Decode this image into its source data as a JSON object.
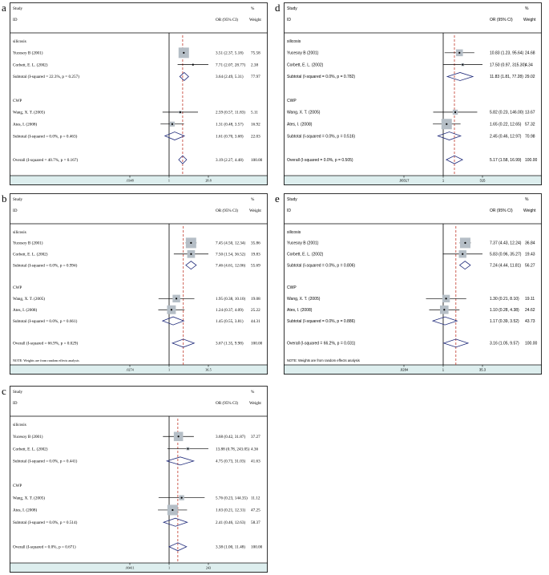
{
  "chart_data": [
    {
      "letter": "a",
      "type": "forest",
      "font": "serif",
      "columns": {
        "study": "Study",
        "id": "ID",
        "or": "OR (95% CI)",
        "pct": "%",
        "weight": "Weight"
      },
      "scale": {
        "min": 0.0348,
        "max": 28.8,
        "null": 1,
        "overall": 3.19
      },
      "ticks": [
        {
          "v": 0.0348,
          "label": ".0348"
        },
        {
          "v": 1,
          "label": "1"
        },
        {
          "v": 28.8,
          "label": "28.8"
        }
      ],
      "note": "",
      "rows": [
        {
          "kind": "group",
          "label": "silicosis"
        },
        {
          "kind": "study",
          "label": "Yucesoy B (2001)",
          "or": 3.51,
          "lo": 2.37,
          "hi": 5.18,
          "ci": "3.51 (2.37, 5.18)",
          "weight": "75.58",
          "w": 75.58
        },
        {
          "kind": "study",
          "label": "Corbett, E. L. (2002)",
          "or": 7.71,
          "lo": 2.07,
          "hi": 28.77,
          "ci": "7.71 (2.07, 28.77)",
          "weight": "2.38",
          "w": 2.38
        },
        {
          "kind": "subtotal",
          "label": "Subtotal  (I-squared = 22.3%, p = 0.257)",
          "or": 3.64,
          "lo": 2.49,
          "hi": 5.31,
          "ci": "3.64 (2.49, 5.31)",
          "weight": "77.97"
        },
        {
          "kind": "gap"
        },
        {
          "kind": "group",
          "label": "CWP"
        },
        {
          "kind": "study",
          "label": "Wang, X. T. (2005)",
          "or": 2.59,
          "lo": 0.57,
          "hi": 11.83,
          "ci": "2.59 (0.57, 11.83)",
          "weight": "5.11",
          "w": 5.11
        },
        {
          "kind": "study",
          "label": "Ates, I. (2008)",
          "or": 1.31,
          "lo": 0.48,
          "hi": 3.57,
          "ci": "1.31 (0.48, 3.57)",
          "weight": "16.92",
          "w": 16.92
        },
        {
          "kind": "subtotal",
          "label": "Subtotal  (I-squared = 0.0%, p = 0.463)",
          "or": 1.61,
          "lo": 0.7,
          "hi": 3.68,
          "ci": "1.61 (0.70, 3.68)",
          "weight": "22.03"
        },
        {
          "kind": "gap"
        },
        {
          "kind": "subtotal",
          "label": "Overall  (I-squared = 40.7%, p = 0.167)",
          "or": 3.19,
          "lo": 2.27,
          "hi": 4.48,
          "ci": "3.19 (2.27, 4.48)",
          "weight": "100.00"
        }
      ]
    },
    {
      "letter": "b",
      "type": "forest",
      "font": "serif",
      "columns": {
        "study": "Study",
        "id": "ID",
        "or": "OR (95% CI)",
        "pct": "%",
        "weight": "Weight"
      },
      "scale": {
        "min": 0.0274,
        "max": 36.5,
        "null": 1,
        "overall": 3.67
      },
      "ticks": [
        {
          "v": 0.0274,
          "label": ".0274"
        },
        {
          "v": 1,
          "label": "1"
        },
        {
          "v": 36.5,
          "label": "36.5"
        }
      ],
      "note": "NOTE: Weights are from random effects analysis",
      "rows": [
        {
          "kind": "group",
          "label": "silicosis"
        },
        {
          "kind": "study",
          "label": "Yucesoy B (2001)",
          "or": 7.45,
          "lo": 4.5,
          "hi": 12.34,
          "ci": "7.45 (4.50, 12.34)",
          "weight": "35.86",
          "w": 35.86
        },
        {
          "kind": "study",
          "label": "Corbett, E. L. (2002)",
          "or": 7.5,
          "lo": 1.54,
          "hi": 36.52,
          "ci": "7.50 (1.54, 36.52)",
          "weight": "19.83",
          "w": 19.83
        },
        {
          "kind": "subtotal",
          "label": "Subtotal  (I-squared = 0.0%, p = 0.994)",
          "or": 7.46,
          "lo": 4.61,
          "hi": 12.06,
          "ci": "7.46 (4.61, 12.06)",
          "weight": "55.69"
        },
        {
          "kind": "gap"
        },
        {
          "kind": "group",
          "label": "CWP"
        },
        {
          "kind": "study",
          "label": "Wang, X. T. (2005)",
          "or": 1.95,
          "lo": 0.38,
          "hi": 10.1,
          "ci": "1.95 (0.38, 10.10)",
          "weight": "19.08",
          "w": 19.08
        },
        {
          "kind": "study",
          "label": "Ates, I. (2008)",
          "or": 1.24,
          "lo": 0.37,
          "hi": 4.09,
          "ci": "1.24 (0.37, 4.09)",
          "weight": "25.22",
          "w": 25.22
        },
        {
          "kind": "subtotal",
          "label": "Subtotal  (I-squared = 0.0%, p = 0.661)",
          "or": 1.45,
          "lo": 0.55,
          "hi": 3.81,
          "ci": "1.45 (0.55, 3.81)",
          "weight": "44.31"
        },
        {
          "kind": "gap"
        },
        {
          "kind": "subtotal",
          "label": "Overall  (I-squared = 66.9%, p = 0.029)",
          "or": 3.67,
          "lo": 1.35,
          "hi": 9.98,
          "ci": "3.67 (1.35, 9.98)",
          "weight": "100.00"
        }
      ]
    },
    {
      "letter": "c",
      "type": "forest",
      "font": "serif",
      "columns": {
        "study": "Study",
        "id": "ID",
        "or": "OR (95% CI)",
        "pct": "%",
        "weight": "Weight"
      },
      "scale": {
        "min": 0.00411,
        "max": 243,
        "null": 1,
        "overall": 3.38
      },
      "ticks": [
        {
          "v": 0.00411,
          "label": ".00411"
        },
        {
          "v": 1,
          "label": "1"
        },
        {
          "v": 243,
          "label": "243"
        }
      ],
      "note": "",
      "rows": [
        {
          "kind": "group",
          "label": "silicosis"
        },
        {
          "kind": "study",
          "label": "Yucesoy B (2001)",
          "or": 3.68,
          "lo": 0.42,
          "hi": 31.87,
          "ci": "3.68 (0.42, 31.87)",
          "weight": "37.27",
          "w": 37.27
        },
        {
          "kind": "study",
          "label": "Corbett, E. L. (2002)",
          "or": 13.88,
          "lo": 0.78,
          "hi": 243.05,
          "ci": "13.88 (0.78, 243.05)",
          "weight": "4.36",
          "w": 4.36
        },
        {
          "kind": "subtotal",
          "label": "Subtotal  (I-squared = 0.0%, p = 0.441)",
          "or": 4.75,
          "lo": 0.73,
          "hi": 31.03,
          "ci": "4.75 (0.73, 31.03)",
          "weight": "41.63"
        },
        {
          "kind": "gap"
        },
        {
          "kind": "group",
          "label": "CWP"
        },
        {
          "kind": "study",
          "label": "Wang, X. T. (2005)",
          "or": 5.76,
          "lo": 0.23,
          "hi": 144.35,
          "ci": "5.76 (0.23, 144.35)",
          "weight": "11.12",
          "w": 11.12
        },
        {
          "kind": "study",
          "label": "Ates, I. (2008)",
          "or": 1.63,
          "lo": 0.21,
          "hi": 12.31,
          "ci": "1.63 (0.21, 12.31)",
          "weight": "47.25",
          "w": 47.25
        },
        {
          "kind": "subtotal",
          "label": "Subtotal  (I-squared = 0.0%, p = 0.514)",
          "or": 2.41,
          "lo": 0.46,
          "hi": 12.63,
          "ci": "2.41 (0.46, 12.63)",
          "weight": "58.37"
        },
        {
          "kind": "gap"
        },
        {
          "kind": "subtotal",
          "label": "Overall  (I-squared = 0.0%, p = 0.671)",
          "or": 3.38,
          "lo": 1.0,
          "hi": 11.48,
          "ci": "3.38 (1.00, 11.48)",
          "weight": "100.00"
        }
      ]
    },
    {
      "letter": "d",
      "type": "forest",
      "font": "sans",
      "columns": {
        "study": "Study",
        "id": "ID",
        "or": "OR (95% CI)",
        "pct": "%",
        "weight": "Weight"
      },
      "scale": {
        "min": 0.00317,
        "max": 315,
        "null": 1,
        "overall": 5.17
      },
      "ticks": [
        {
          "v": 0.00317,
          "label": ".00317"
        },
        {
          "v": 1,
          "label": "1"
        },
        {
          "v": 315,
          "label": "315"
        }
      ],
      "note": "",
      "rows": [
        {
          "kind": "group",
          "label": "silicosis"
        },
        {
          "kind": "study",
          "label": "Yucesoy B (2001)",
          "or": 10.83,
          "lo": 1.23,
          "hi": 95.64,
          "ci": "10.83 (1.23, 95.64)",
          "weight": "24.68",
          "w": 24.68
        },
        {
          "kind": "study",
          "label": "Corbett, E. L. (2002)",
          "or": 17.5,
          "lo": 0.97,
          "hi": 315.3,
          "ci": "17.50 (0.97, 315.30)",
          "weight": "4.34",
          "w": 4.34
        },
        {
          "kind": "subtotal",
          "label": "Subtotal  (I-squared = 0.0%, p = 0.782)",
          "or": 11.83,
          "lo": 1.81,
          "hi": 77.28,
          "ci": "11.83 (1.81, 77.28)",
          "weight": "29.02"
        },
        {
          "kind": "gap"
        },
        {
          "kind": "group",
          "label": "CWP"
        },
        {
          "kind": "study",
          "label": "Wang, X. T. (2005)",
          "or": 5.82,
          "lo": 0.23,
          "hi": 146.0,
          "ci": "5.82 (0.23, 146.00)",
          "weight": "13.67",
          "w": 13.67
        },
        {
          "kind": "study",
          "label": "Ates, I. (2008)",
          "or": 1.65,
          "lo": 0.22,
          "hi": 12.65,
          "ci": "1.65 (0.22, 12.65)",
          "weight": "57.32",
          "w": 57.32
        },
        {
          "kind": "subtotal",
          "label": "Subtotal  (I-squared = 0.0%, p = 0.516)",
          "or": 2.45,
          "lo": 0.46,
          "hi": 12.97,
          "ci": "2.45 (0.46, 12.97)",
          "weight": "70.98"
        },
        {
          "kind": "gap"
        },
        {
          "kind": "subtotal",
          "label": "Overall  (I-squared = 0.0%, p = 0.505)",
          "or": 5.17,
          "lo": 1.58,
          "hi": 16.99,
          "ci": "5.17 (1.58, 16.99)",
          "weight": "100.00"
        }
      ]
    },
    {
      "letter": "e",
      "type": "forest",
      "font": "sans",
      "columns": {
        "study": "Study",
        "id": "ID",
        "or": "OR (95% CI)",
        "pct": "%",
        "weight": "Weight"
      },
      "scale": {
        "min": 0.0284,
        "max": 35.3,
        "null": 1,
        "overall": 3.16
      },
      "ticks": [
        {
          "v": 0.0284,
          "label": ".0284"
        },
        {
          "v": 1,
          "label": "1"
        },
        {
          "v": 35.3,
          "label": "35.3"
        }
      ],
      "note": "NOTE: Weights are from random effects analysis",
      "rows": [
        {
          "kind": "group",
          "label": "silicosis"
        },
        {
          "kind": "study",
          "label": "Yucesoy B (2001)",
          "or": 7.37,
          "lo": 4.43,
          "hi": 12.24,
          "ci": "7.37 (4.43, 12.24)",
          "weight": "36.84",
          "w": 36.84
        },
        {
          "kind": "study",
          "label": "Corbett, E. L. (2002)",
          "or": 5.83,
          "lo": 0.96,
          "hi": 35.27,
          "ci": "5.83 (0.96, 35.27)",
          "weight": "19.43",
          "w": 19.43
        },
        {
          "kind": "subtotal",
          "label": "Subtotal  (I-squared = 0.0%, p = 0.806)",
          "or": 7.24,
          "lo": 4.44,
          "hi": 11.81,
          "ci": "7.24 (4.44, 11.81)",
          "weight": "56.27"
        },
        {
          "kind": "gap"
        },
        {
          "kind": "group",
          "label": "CWP"
        },
        {
          "kind": "study",
          "label": "Wang, X. T. (2005)",
          "or": 1.3,
          "lo": 0.21,
          "hi": 8.1,
          "ci": "1.30 (0.21, 8.10)",
          "weight": "19.11",
          "w": 19.11
        },
        {
          "kind": "study",
          "label": "Ates, I. (2008)",
          "or": 1.1,
          "lo": 0.28,
          "hi": 4.38,
          "ci": "1.10 (0.28, 4.38)",
          "weight": "24.62",
          "w": 24.62
        },
        {
          "kind": "subtotal",
          "label": "Subtotal  (I-squared = 0.0%, p = 0.886)",
          "or": 1.17,
          "lo": 0.39,
          "hi": 3.52,
          "ci": "1.17 (0.39, 3.52)",
          "weight": "43.73"
        },
        {
          "kind": "gap"
        },
        {
          "kind": "subtotal",
          "label": "Overall  (I-squared = 66.2%, p = 0.031)",
          "or": 3.16,
          "lo": 1.05,
          "hi": 9.57,
          "ci": "3.16 (1.05, 9.57)",
          "weight": "100.00"
        }
      ]
    }
  ]
}
